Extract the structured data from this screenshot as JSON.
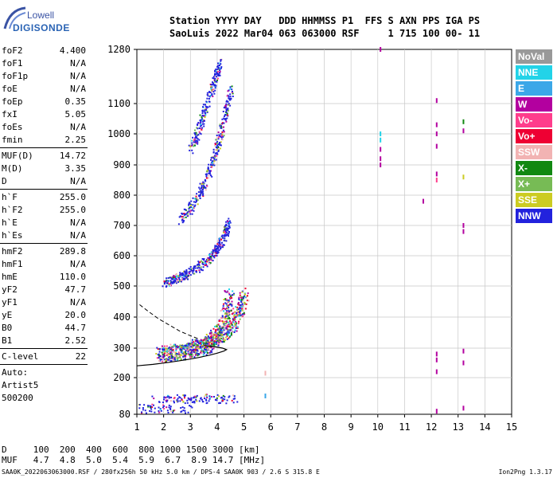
{
  "logo": {
    "line1": "Lowell",
    "line2": "DIGISONDE"
  },
  "header": {
    "line1": "Station YYYY DAY   DDD HHMMSS P1  FFS S AXN PPS IGA PS",
    "line2": "SaoLuis 2022 Mar04 063 063000 RSF     1 715 100 00- 11"
  },
  "params": {
    "group1": [
      {
        "k": "foF2",
        "v": "4.400"
      },
      {
        "k": "foF1",
        "v": "N/A"
      },
      {
        "k": "foF1p",
        "v": "N/A"
      },
      {
        "k": "foE",
        "v": "N/A"
      },
      {
        "k": "foEp",
        "v": "0.35"
      },
      {
        "k": "fxI",
        "v": "5.05"
      },
      {
        "k": "foEs",
        "v": "N/A"
      },
      {
        "k": "fmin",
        "v": "2.25"
      }
    ],
    "group2": [
      {
        "k": "MUF(D)",
        "v": "14.72"
      },
      {
        "k": "M(D)",
        "v": "3.35"
      },
      {
        "k": "D",
        "v": "N/A"
      }
    ],
    "group3": [
      {
        "k": "h`F",
        "v": "255.0"
      },
      {
        "k": "h`F2",
        "v": "255.0"
      },
      {
        "k": "h`E",
        "v": "N/A"
      },
      {
        "k": "h`Es",
        "v": "N/A"
      }
    ],
    "group4": [
      {
        "k": "hmF2",
        "v": "289.8"
      },
      {
        "k": "hmF1",
        "v": "N/A"
      },
      {
        "k": "hmE",
        "v": "110.0"
      },
      {
        "k": "yF2",
        "v": "47.7"
      },
      {
        "k": "yF1",
        "v": "N/A"
      },
      {
        "k": "yE",
        "v": "20.0"
      },
      {
        "k": "B0",
        "v": "44.7"
      },
      {
        "k": "B1",
        "v": "2.52"
      }
    ],
    "group5": [
      {
        "k": "C-level",
        "v": "22"
      }
    ],
    "auto": [
      "Auto:",
      "Artist5",
      "500200"
    ]
  },
  "legend": [
    {
      "label": "NoVal",
      "color": "#999999"
    },
    {
      "label": "NNE",
      "color": "#22d3e8"
    },
    {
      "label": "E",
      "color": "#3ba7e8"
    },
    {
      "label": "W",
      "color": "#b3009f"
    },
    {
      "label": "Vo-",
      "color": "#ff3d8c"
    },
    {
      "label": "Vo+",
      "color": "#ee0033"
    },
    {
      "label": "SSW",
      "color": "#f2b3b3"
    },
    {
      "label": "X-",
      "color": "#118811"
    },
    {
      "label": "X+",
      "color": "#77bb55"
    },
    {
      "label": "SSE",
      "color": "#cccc22"
    },
    {
      "label": "NNW",
      "color": "#2222dd"
    }
  ],
  "chart_data": {
    "type": "scatter",
    "xlim": [
      1,
      15
    ],
    "ylim": [
      80,
      1280
    ],
    "xticks": [
      "1",
      "2",
      "3",
      "4",
      "5",
      "6",
      "7",
      "8",
      "9",
      "10",
      "11",
      "12",
      "13",
      "14",
      "15"
    ],
    "yticks": [
      "80",
      "200",
      "300",
      "400",
      "500",
      "600",
      "700",
      "800",
      "900",
      "1000",
      "1100",
      "1280"
    ],
    "grid": true,
    "traces": [
      {
        "name": "O-trace",
        "points": [
          [
            1.8,
            280
          ],
          [
            2.2,
            282
          ],
          [
            2.6,
            287
          ],
          [
            3.0,
            293
          ],
          [
            3.3,
            300
          ],
          [
            3.6,
            310
          ],
          [
            3.8,
            325
          ],
          [
            4.0,
            345
          ],
          [
            4.2,
            380
          ],
          [
            4.35,
            420
          ],
          [
            4.45,
            480
          ]
        ]
      },
      {
        "name": "X-trace",
        "points": [
          [
            2.0,
            285
          ],
          [
            2.5,
            292
          ],
          [
            3.0,
            300
          ],
          [
            3.5,
            312
          ],
          [
            3.9,
            330
          ],
          [
            4.2,
            350
          ],
          [
            4.5,
            370
          ],
          [
            4.7,
            400
          ],
          [
            4.9,
            440
          ],
          [
            5.0,
            480
          ]
        ]
      },
      {
        "name": "multi-hop-2",
        "points": [
          [
            2.0,
            510
          ],
          [
            2.4,
            525
          ],
          [
            2.8,
            540
          ],
          [
            3.2,
            560
          ],
          [
            3.6,
            585
          ],
          [
            3.9,
            610
          ],
          [
            4.1,
            640
          ],
          [
            4.3,
            680
          ],
          [
            4.4,
            720
          ]
        ]
      },
      {
        "name": "multi-hop-3",
        "points": [
          [
            2.6,
            720
          ],
          [
            3.0,
            760
          ],
          [
            3.4,
            820
          ],
          [
            3.7,
            880
          ],
          [
            3.9,
            940
          ],
          [
            4.1,
            1000
          ],
          [
            4.3,
            1080
          ],
          [
            4.5,
            1150
          ]
        ]
      },
      {
        "name": "multi-hop-4",
        "points": [
          [
            3.0,
            950
          ],
          [
            3.3,
            1020
          ],
          [
            3.6,
            1100
          ],
          [
            3.9,
            1180
          ],
          [
            4.1,
            1240
          ]
        ]
      },
      {
        "name": "Es-trace",
        "points": [
          [
            1.6,
            130
          ],
          [
            2.2,
            131
          ],
          [
            2.8,
            132
          ],
          [
            3.4,
            133
          ],
          [
            4.0,
            132
          ],
          [
            4.7,
            133
          ]
        ]
      },
      {
        "name": "low-trace",
        "points": [
          [
            1.0,
            100
          ],
          [
            1.5,
            100
          ],
          [
            2.0,
            101
          ],
          [
            2.5,
            100
          ],
          [
            3.0,
            101
          ]
        ]
      }
    ],
    "profile_solid": [
      [
        1.0,
        240
      ],
      [
        1.6,
        245
      ],
      [
        2.2,
        252
      ],
      [
        2.8,
        260
      ],
      [
        3.3,
        268
      ],
      [
        3.7,
        276
      ],
      [
        4.0,
        283
      ],
      [
        4.25,
        290
      ],
      [
        4.35,
        295
      ],
      [
        4.2,
        300
      ],
      [
        3.9,
        305
      ],
      [
        3.5,
        308
      ]
    ],
    "profile_dashed": [
      [
        1.1,
        440
      ],
      [
        1.4,
        420
      ],
      [
        1.8,
        395
      ],
      [
        2.2,
        375
      ],
      [
        2.6,
        355
      ],
      [
        3.0,
        340
      ],
      [
        3.3,
        330
      ]
    ],
    "isolated": [
      {
        "x": 10.1,
        "y": 1280,
        "c": "#b3009f"
      },
      {
        "x": 10.1,
        "y": 1000,
        "c": "#22d3e8"
      },
      {
        "x": 10.1,
        "y": 980,
        "c": "#22d3e8"
      },
      {
        "x": 10.1,
        "y": 950,
        "c": "#b3009f"
      },
      {
        "x": 10.1,
        "y": 920,
        "c": "#b3009f"
      },
      {
        "x": 10.1,
        "y": 900,
        "c": "#b3009f"
      },
      {
        "x": 12.2,
        "y": 1110,
        "c": "#b3009f"
      },
      {
        "x": 12.2,
        "y": 1030,
        "c": "#b3009f"
      },
      {
        "x": 12.2,
        "y": 1000,
        "c": "#b3009f"
      },
      {
        "x": 12.2,
        "y": 960,
        "c": "#b3009f"
      },
      {
        "x": 12.2,
        "y": 870,
        "c": "#b3009f"
      },
      {
        "x": 12.2,
        "y": 850,
        "c": "#ff3d8c"
      },
      {
        "x": 12.2,
        "y": 280,
        "c": "#b3009f"
      },
      {
        "x": 12.2,
        "y": 260,
        "c": "#b3009f"
      },
      {
        "x": 12.2,
        "y": 220,
        "c": "#b3009f"
      },
      {
        "x": 13.2,
        "y": 1040,
        "c": "#118811"
      },
      {
        "x": 13.2,
        "y": 1010,
        "c": "#b3009f"
      },
      {
        "x": 13.2,
        "y": 860,
        "c": "#cccc22"
      },
      {
        "x": 13.2,
        "y": 700,
        "c": "#b3009f"
      },
      {
        "x": 13.2,
        "y": 680,
        "c": "#b3009f"
      },
      {
        "x": 13.2,
        "y": 290,
        "c": "#b3009f"
      },
      {
        "x": 13.2,
        "y": 250,
        "c": "#b3009f"
      },
      {
        "x": 11.7,
        "y": 780,
        "c": "#b3009f"
      },
      {
        "x": 5.8,
        "y": 215,
        "c": "#f2b3b3"
      },
      {
        "x": 5.8,
        "y": 140,
        "c": "#3ba7e8"
      },
      {
        "x": 12.2,
        "y": 90,
        "c": "#b3009f"
      },
      {
        "x": 13.2,
        "y": 100,
        "c": "#b3009f"
      }
    ]
  },
  "bottom_table": {
    "row1": "D     100  200  400  600  800 1000 1500 3000 [km]",
    "row2": "MUF   4.7  4.8  5.0  5.4  5.9  6.7  8.9 14.7 [MHz]"
  },
  "footer": "SAA0K_2022063063000.RSF / 280fx256h 50 kHz 5.0 km / DPS-4 SAA0K 903 / 2.6 S 315.8 E",
  "version": "Ion2Png 1.3.17"
}
